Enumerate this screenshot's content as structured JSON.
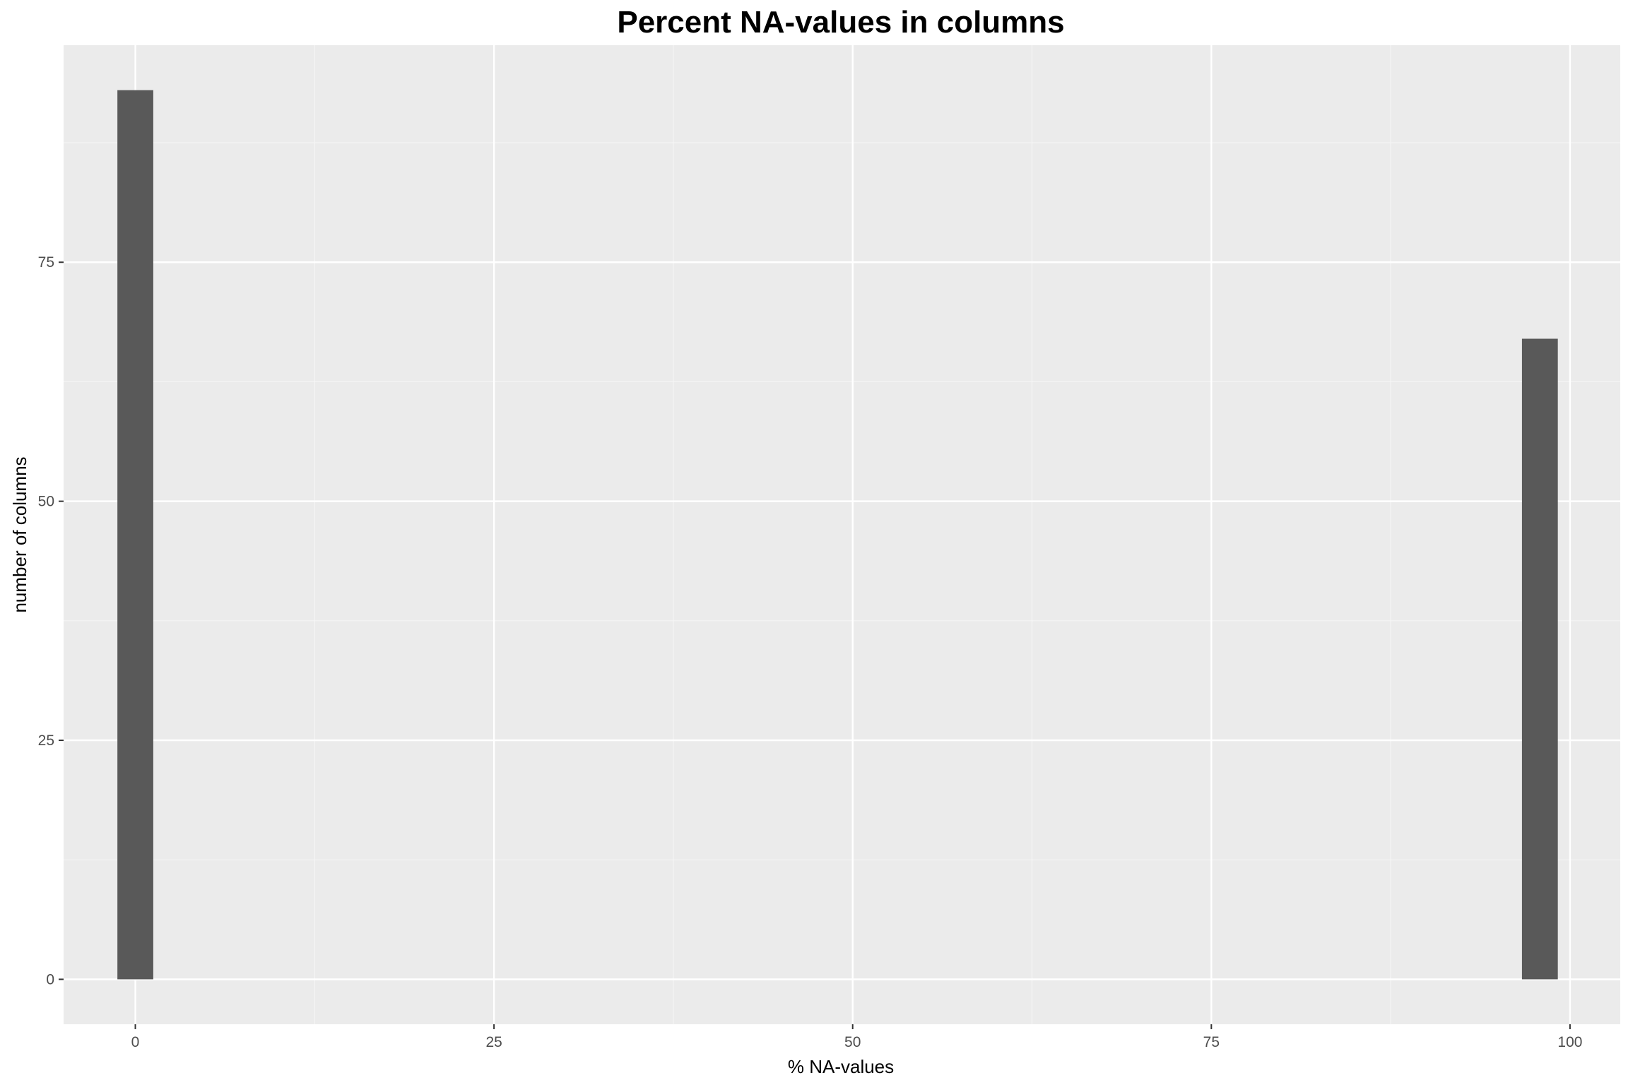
{
  "chart_data": {
    "type": "bar",
    "title": "Percent NA-values in columns",
    "xlabel": "% NA-values",
    "ylabel": "number of columns",
    "xlim": [
      -5,
      103.5
    ],
    "ylim": [
      -4.7,
      97.7
    ],
    "x_ticks": [
      0,
      25,
      50,
      75,
      100
    ],
    "y_ticks": [
      0,
      25,
      50,
      75
    ],
    "bin_width": 2.5,
    "bars": [
      {
        "x": 0,
        "count": 93
      },
      {
        "x": 97.9,
        "count": 67
      }
    ],
    "grid": true,
    "legend": "none",
    "colors": {
      "panel_background": "#ebebeb",
      "grid_major": "#ffffff",
      "grid_minor": "#f5f5f5",
      "bar_fill": "#595959",
      "tick_text": "#4d4d4d",
      "tick_mark": "#333333"
    }
  }
}
